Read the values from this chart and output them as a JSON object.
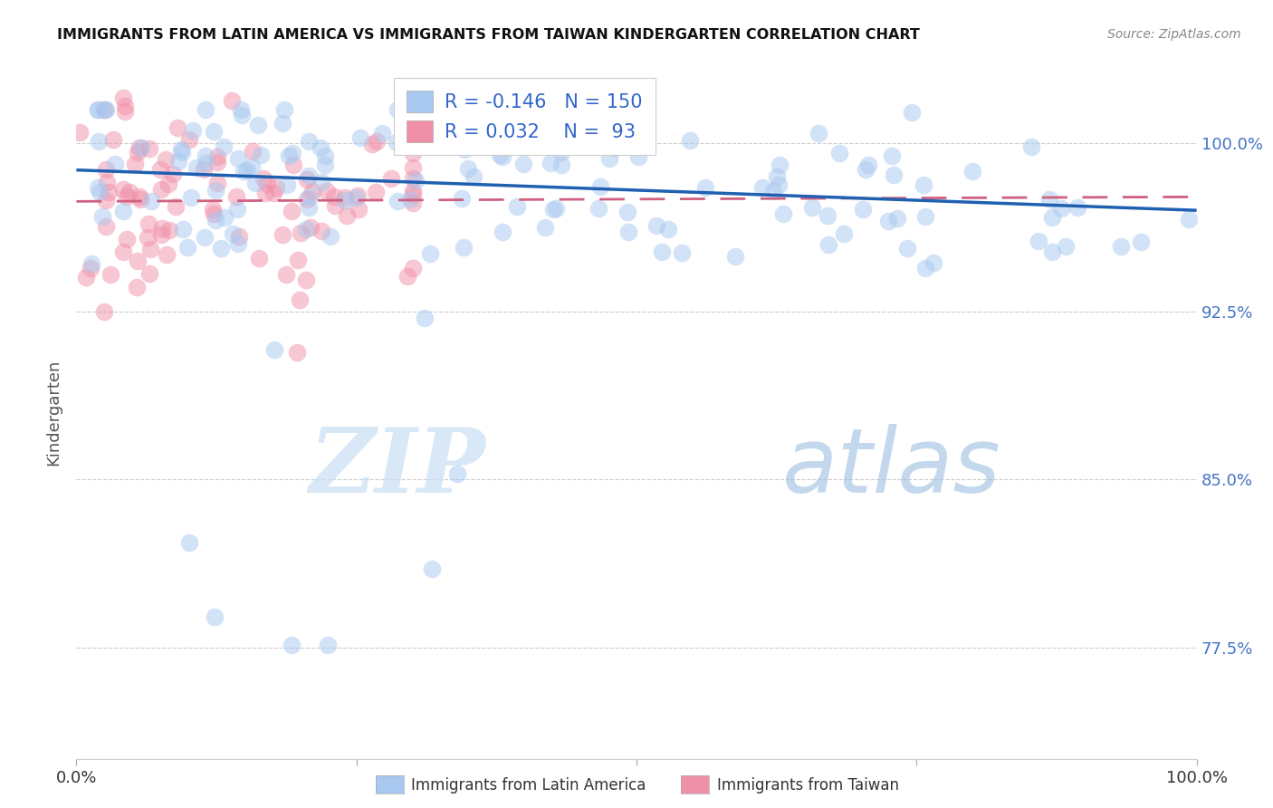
{
  "title": "IMMIGRANTS FROM LATIN AMERICA VS IMMIGRANTS FROM TAIWAN KINDERGARTEN CORRELATION CHART",
  "source": "Source: ZipAtlas.com",
  "ylabel": "Kindergarten",
  "ytick_labels": [
    "100.0%",
    "92.5%",
    "85.0%",
    "77.5%"
  ],
  "ytick_values": [
    1.0,
    0.925,
    0.85,
    0.775
  ],
  "xlim": [
    0.0,
    1.0
  ],
  "ylim": [
    0.725,
    1.035
  ],
  "legend_blue_R": "-0.146",
  "legend_blue_N": "150",
  "legend_pink_R": "0.032",
  "legend_pink_N": "93",
  "blue_color": "#a8c8f0",
  "pink_color": "#f090a8",
  "trendline_blue_color": "#2060b0",
  "trendline_pink_color": "#d06080",
  "legend_label_blue": "Immigrants from Latin America",
  "legend_label_pink": "Immigrants from Taiwan",
  "watermark_zip": "ZIP",
  "watermark_atlas": "atlas",
  "blue_trendline_start": 0.988,
  "blue_trendline_end": 0.97,
  "pink_trendline_start": 0.974,
  "pink_trendline_end": 0.976
}
